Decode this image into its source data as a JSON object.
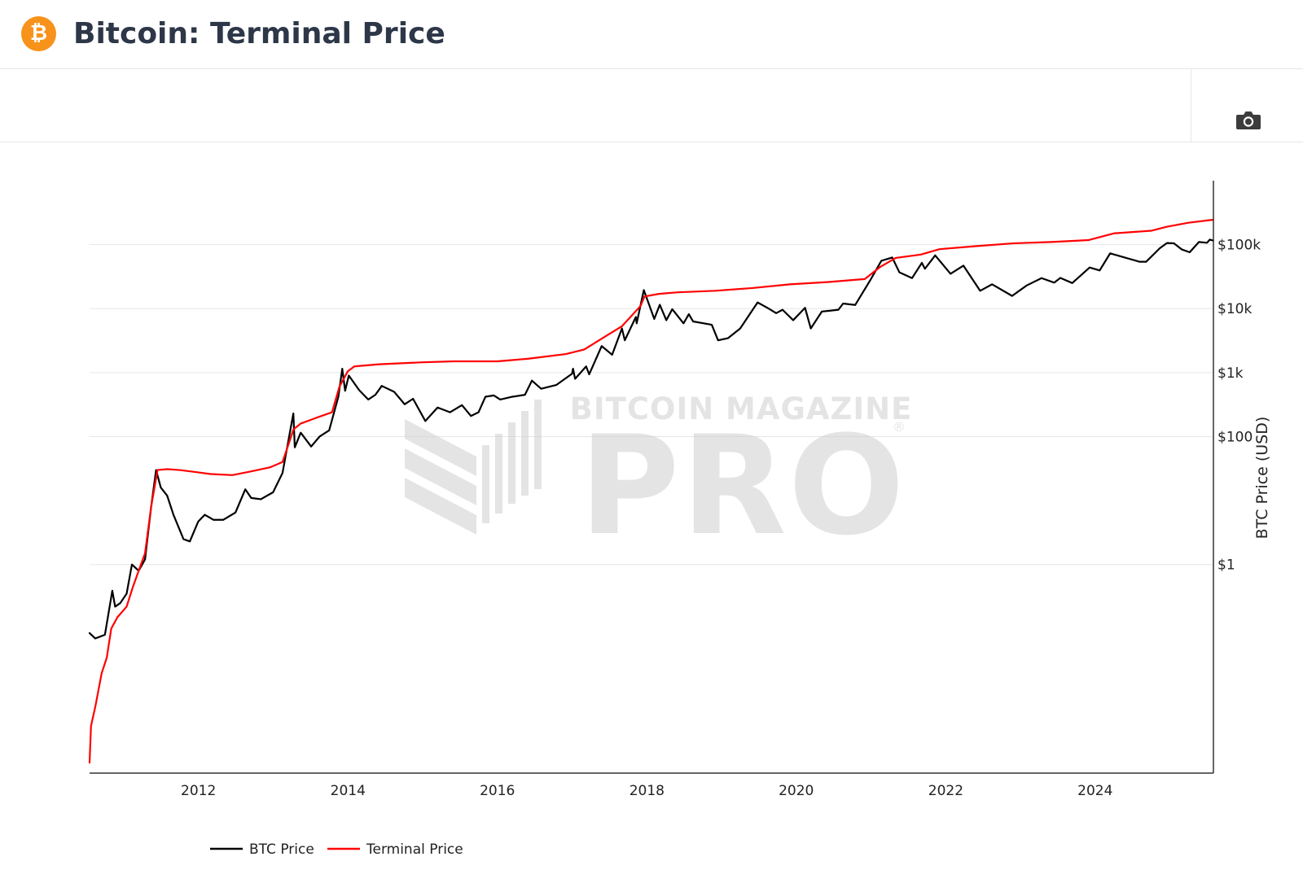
{
  "header": {
    "logo_glyph": "₿",
    "title": "Bitcoin: Terminal Price"
  },
  "toolbar": {
    "camera_icon": "camera-icon"
  },
  "watermark": {
    "line1": "BITCOIN MAGAZINE",
    "line2": "PRO",
    "mark": "®"
  },
  "colors": {
    "btc_price": "#000000",
    "terminal_price": "#ff0000",
    "grid": "#e6e6e6",
    "logo": "#f7931a",
    "watermark": "#e2e2e2"
  },
  "chart_data": {
    "type": "line",
    "title": "",
    "xlabel": "",
    "ylabel": "BTC Price (USD)",
    "y_scale": "log",
    "y_axis_side": "right",
    "ylim": [
      0.00055,
      1000000
    ],
    "xlim": [
      "2010-07-18",
      "2025-08-01"
    ],
    "grid": true,
    "legend_position": "bottom-left",
    "x_ticks": [
      "2012",
      "2014",
      "2016",
      "2018",
      "2020",
      "2022",
      "2024"
    ],
    "y_ticks": [
      {
        "value": 1,
        "label": "$1"
      },
      {
        "value": 100,
        "label": "$100"
      },
      {
        "value": 1000,
        "label": "$1k"
      },
      {
        "value": 10000,
        "label": "$10k"
      },
      {
        "value": 100000,
        "label": "$100k"
      }
    ],
    "series": [
      {
        "name": "BTC Price",
        "points": [
          [
            "2010-07-18",
            0.085
          ],
          [
            "2010-08-15",
            0.07
          ],
          [
            "2010-10-01",
            0.08
          ],
          [
            "2010-11-06",
            0.39
          ],
          [
            "2010-11-20",
            0.22
          ],
          [
            "2010-12-15",
            0.25
          ],
          [
            "2011-01-15",
            0.35
          ],
          [
            "2011-02-10",
            1.0
          ],
          [
            "2011-03-15",
            0.8
          ],
          [
            "2011-04-15",
            1.2
          ],
          [
            "2011-05-15",
            8.0
          ],
          [
            "2011-06-08",
            30.0
          ],
          [
            "2011-07-01",
            16.0
          ],
          [
            "2011-08-01",
            12.0
          ],
          [
            "2011-09-01",
            6.0
          ],
          [
            "2011-10-20",
            2.5
          ],
          [
            "2011-11-20",
            2.3
          ],
          [
            "2011-12-31",
            4.7
          ],
          [
            "2012-02-01",
            6.0
          ],
          [
            "2012-03-15",
            5.0
          ],
          [
            "2012-05-01",
            5.0
          ],
          [
            "2012-06-30",
            6.5
          ],
          [
            "2012-08-17",
            15.0
          ],
          [
            "2012-09-15",
            11.0
          ],
          [
            "2012-11-01",
            10.5
          ],
          [
            "2012-12-31",
            13.5
          ],
          [
            "2013-02-15",
            27.0
          ],
          [
            "2013-04-09",
            230.0
          ],
          [
            "2013-04-16",
            68.0
          ],
          [
            "2013-05-15",
            115.0
          ],
          [
            "2013-07-05",
            70.0
          ],
          [
            "2013-08-15",
            100.0
          ],
          [
            "2013-10-01",
            125.0
          ],
          [
            "2013-11-15",
            420.0
          ],
          [
            "2013-12-04",
            1150.0
          ],
          [
            "2013-12-18",
            520.0
          ],
          [
            "2014-01-05",
            900.0
          ],
          [
            "2014-02-25",
            530.0
          ],
          [
            "2014-04-10",
            380.0
          ],
          [
            "2014-05-15",
            450.0
          ],
          [
            "2014-06-15",
            620.0
          ],
          [
            "2014-08-15",
            500.0
          ],
          [
            "2014-10-05",
            320.0
          ],
          [
            "2014-11-15",
            390.0
          ],
          [
            "2015-01-14",
            175.0
          ],
          [
            "2015-03-15",
            285.0
          ],
          [
            "2015-05-15",
            240.0
          ],
          [
            "2015-07-12",
            310.0
          ],
          [
            "2015-08-25",
            210.0
          ],
          [
            "2015-10-01",
            240.0
          ],
          [
            "2015-11-04",
            420.0
          ],
          [
            "2015-12-15",
            440.0
          ],
          [
            "2016-01-15",
            380.0
          ],
          [
            "2016-03-15",
            420.0
          ],
          [
            "2016-05-15",
            450.0
          ],
          [
            "2016-06-18",
            750.0
          ],
          [
            "2016-08-02",
            560.0
          ],
          [
            "2016-10-15",
            640.0
          ],
          [
            "2016-12-31",
            960.0
          ],
          [
            "2017-01-05",
            1150.0
          ],
          [
            "2017-01-15",
            800.0
          ],
          [
            "2017-03-10",
            1250.0
          ],
          [
            "2017-03-25",
            940.0
          ],
          [
            "2017-05-25",
            2600.0
          ],
          [
            "2017-07-15",
            1900.0
          ],
          [
            "2017-09-01",
            4900.0
          ],
          [
            "2017-09-15",
            3200.0
          ],
          [
            "2017-11-08",
            7400.0
          ],
          [
            "2017-11-12",
            5900.0
          ],
          [
            "2017-12-17",
            19500.0
          ],
          [
            "2018-02-06",
            6900.0
          ],
          [
            "2018-03-05",
            11500.0
          ],
          [
            "2018-04-06",
            6600.0
          ],
          [
            "2018-05-05",
            9800.0
          ],
          [
            "2018-06-29",
            5900.0
          ],
          [
            "2018-07-25",
            8200.0
          ],
          [
            "2018-08-15",
            6300.0
          ],
          [
            "2018-11-14",
            5600.0
          ],
          [
            "2018-12-15",
            3200.0
          ],
          [
            "2019-02-01",
            3450.0
          ],
          [
            "2019-04-02",
            4900.0
          ],
          [
            "2019-06-26",
            12500.0
          ],
          [
            "2019-08-15",
            10200.0
          ],
          [
            "2019-09-25",
            8500.0
          ],
          [
            "2019-10-26",
            9600.0
          ],
          [
            "2019-12-17",
            6600.0
          ],
          [
            "2020-02-13",
            10300.0
          ],
          [
            "2020-03-12",
            4900.0
          ],
          [
            "2020-05-05",
            9000.0
          ],
          [
            "2020-07-25",
            9600.0
          ],
          [
            "2020-08-17",
            12000.0
          ],
          [
            "2020-10-15",
            11400.0
          ],
          [
            "2020-12-31",
            29000.0
          ],
          [
            "2021-02-20",
            56000.0
          ],
          [
            "2021-04-14",
            63000.0
          ],
          [
            "2021-05-19",
            37000.0
          ],
          [
            "2021-07-20",
            30000.0
          ],
          [
            "2021-09-06",
            52000.0
          ],
          [
            "2021-09-21",
            42000.0
          ],
          [
            "2021-11-10",
            68000.0
          ],
          [
            "2022-01-24",
            35000.0
          ],
          [
            "2022-03-28",
            47000.0
          ],
          [
            "2022-06-18",
            19000.0
          ],
          [
            "2022-08-15",
            24000.0
          ],
          [
            "2022-11-21",
            15800.0
          ],
          [
            "2023-01-31",
            23000.0
          ],
          [
            "2023-04-14",
            30000.0
          ],
          [
            "2023-06-15",
            25500.0
          ],
          [
            "2023-07-15",
            30200.0
          ],
          [
            "2023-09-11",
            25100.0
          ],
          [
            "2023-12-05",
            44000.0
          ],
          [
            "2024-01-23",
            39500.0
          ],
          [
            "2024-03-14",
            73000.0
          ],
          [
            "2024-08-05",
            54000.0
          ],
          [
            "2024-09-06",
            54000.0
          ],
          [
            "2024-11-12",
            88000.0
          ],
          [
            "2024-12-17",
            106000.0
          ],
          [
            "2025-01-20",
            105000.0
          ],
          [
            "2025-02-28",
            84000.0
          ],
          [
            "2025-04-07",
            76000.0
          ],
          [
            "2025-05-22",
            110000.0
          ],
          [
            "2025-07-01",
            107000.0
          ],
          [
            "2025-07-14",
            120000.0
          ],
          [
            "2025-07-31",
            116000.0
          ]
        ]
      },
      {
        "name": "Terminal Price",
        "points": [
          [
            "2010-07-18",
            0.0008
          ],
          [
            "2010-07-25",
            0.003
          ],
          [
            "2010-08-15",
            0.006
          ],
          [
            "2010-09-15",
            0.02
          ],
          [
            "2010-10-10",
            0.035
          ],
          [
            "2010-11-01",
            0.1
          ],
          [
            "2010-12-01",
            0.15
          ],
          [
            "2011-01-15",
            0.22
          ],
          [
            "2011-02-15",
            0.45
          ],
          [
            "2011-03-15",
            0.8
          ],
          [
            "2011-04-15",
            1.5
          ],
          [
            "2011-05-15",
            8.0
          ],
          [
            "2011-06-15",
            30.0
          ],
          [
            "2011-08-01",
            31.0
          ],
          [
            "2011-10-01",
            30.0
          ],
          [
            "2011-12-15",
            28.0
          ],
          [
            "2012-03-01",
            26.0
          ],
          [
            "2012-06-15",
            25.0
          ],
          [
            "2012-09-01",
            28.0
          ],
          [
            "2012-12-15",
            33.0
          ],
          [
            "2013-02-15",
            40.0
          ],
          [
            "2013-04-10",
            130.0
          ],
          [
            "2013-05-15",
            160.0
          ],
          [
            "2013-08-15",
            205.0
          ],
          [
            "2013-10-15",
            240.0
          ],
          [
            "2013-11-20",
            600.0
          ],
          [
            "2013-12-31",
            1050.0
          ],
          [
            "2014-02-01",
            1250.0
          ],
          [
            "2014-06-01",
            1350.0
          ],
          [
            "2015-01-01",
            1450.0
          ],
          [
            "2015-06-01",
            1500.0
          ],
          [
            "2016-01-01",
            1500.0
          ],
          [
            "2016-06-01",
            1650.0
          ],
          [
            "2016-12-01",
            1950.0
          ],
          [
            "2017-03-01",
            2300.0
          ],
          [
            "2017-06-01",
            3500.0
          ],
          [
            "2017-09-01",
            5300.0
          ],
          [
            "2017-12-01",
            11000.0
          ],
          [
            "2017-12-20",
            15500.0
          ],
          [
            "2018-03-01",
            17000.0
          ],
          [
            "2018-06-01",
            18000.0
          ],
          [
            "2018-12-01",
            19000.0
          ],
          [
            "2019-06-01",
            21000.0
          ],
          [
            "2019-12-01",
            24000.0
          ],
          [
            "2020-06-01",
            26000.0
          ],
          [
            "2020-12-01",
            29000.0
          ],
          [
            "2021-02-15",
            45000.0
          ],
          [
            "2021-05-01",
            62000.0
          ],
          [
            "2021-09-01",
            70000.0
          ],
          [
            "2021-12-01",
            85000.0
          ],
          [
            "2022-06-01",
            95000.0
          ],
          [
            "2022-12-01",
            105000.0
          ],
          [
            "2023-06-01",
            110000.0
          ],
          [
            "2023-12-01",
            118000.0
          ],
          [
            "2024-04-01",
            150000.0
          ],
          [
            "2024-10-01",
            165000.0
          ],
          [
            "2024-12-15",
            190000.0
          ],
          [
            "2025-04-01",
            220000.0
          ],
          [
            "2025-07-31",
            245000.0
          ]
        ]
      }
    ]
  }
}
